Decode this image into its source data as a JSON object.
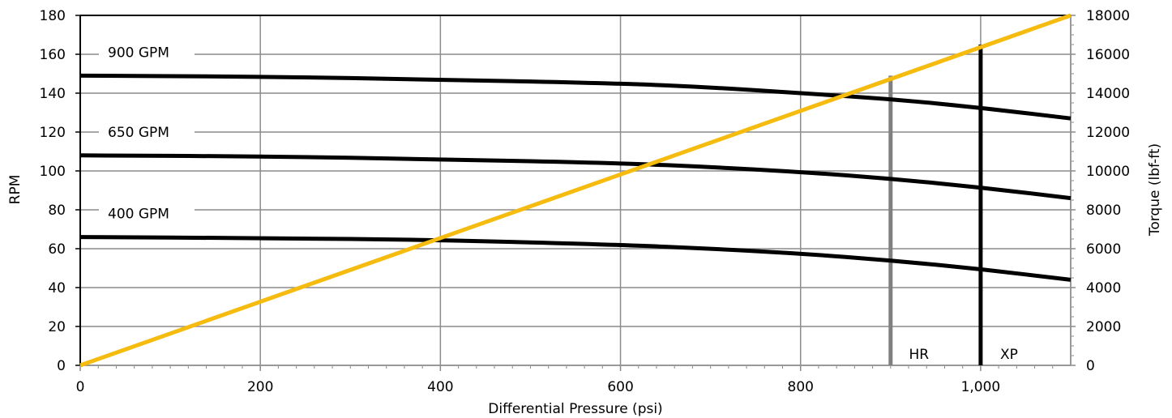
{
  "chart_data": {
    "type": "line",
    "title": "",
    "xlabel": "Differential Pressure (psi)",
    "ylabel": "RPM",
    "y2label": "Torque (lbf-ft)",
    "xlim": [
      0,
      1100
    ],
    "ylim": [
      0,
      180
    ],
    "y2lim": [
      0,
      18000
    ],
    "grid": true,
    "x_ticks": [
      0,
      200,
      400,
      600,
      800,
      1000
    ],
    "x_tick_labels": [
      "0",
      "200",
      "400",
      "600",
      "800",
      "1,000"
    ],
    "y_ticks": [
      0,
      20,
      40,
      60,
      80,
      100,
      120,
      140,
      160,
      180
    ],
    "y_tick_labels": [
      "0",
      "20",
      "40",
      "60",
      "80",
      "100",
      "120",
      "140",
      "160",
      "180"
    ],
    "y2_ticks": [
      0,
      2000,
      4000,
      6000,
      8000,
      10000,
      12000,
      14000,
      16000,
      18000
    ],
    "y2_tick_labels": [
      "0",
      "2000",
      "4000",
      "6000",
      "8000",
      "10000",
      "12000",
      "14000",
      "16000",
      "18000"
    ],
    "series": [
      {
        "name": "900 GPM",
        "axis": "left",
        "color": "#000000",
        "x": [
          0,
          200,
          400,
          600,
          700,
          800,
          900,
          1000,
          1100
        ],
        "y": [
          149,
          148.5,
          147,
          145,
          143,
          140,
          137,
          132.5,
          127
        ]
      },
      {
        "name": "650 GPM",
        "axis": "left",
        "color": "#000000",
        "x": [
          0,
          200,
          400,
          600,
          700,
          800,
          900,
          1000,
          1100
        ],
        "y": [
          108,
          107.5,
          106,
          104,
          102,
          99.5,
          96,
          91.5,
          86
        ]
      },
      {
        "name": "400 GPM",
        "axis": "left",
        "color": "#000000",
        "x": [
          0,
          200,
          400,
          600,
          700,
          800,
          900,
          1000,
          1100
        ],
        "y": [
          66,
          65.5,
          64.5,
          62,
          60,
          57.5,
          54,
          49.5,
          44
        ]
      },
      {
        "name": "",
        "axis": "right",
        "color": "#f5bb0f",
        "x": [
          0,
          1100
        ],
        "y": [
          0,
          18000
        ]
      }
    ],
    "annotations": [
      {
        "label": "HR",
        "x": 900,
        "y_top": 149,
        "color": "#808080"
      },
      {
        "label": "XP",
        "x": 1000,
        "y_top": 165,
        "color": "#000000"
      }
    ]
  }
}
